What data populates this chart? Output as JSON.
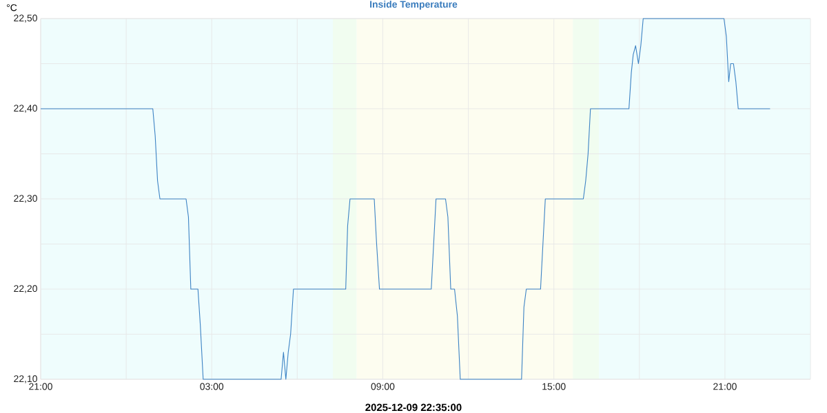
{
  "chart_data": {
    "type": "line",
    "title": "Inside Temperature",
    "xlabel": "2025-12-09 22:35:00",
    "ylabel": "°C",
    "x": [
      "2025-12-08T21:00",
      "2025-12-09T00:56",
      "2025-12-09T01:01",
      "2025-12-09T01:06",
      "2025-12-09T01:11",
      "2025-12-09T02:06",
      "2025-12-09T02:11",
      "2025-12-09T02:16",
      "2025-12-09T02:31",
      "2025-12-09T02:36",
      "2025-12-09T02:42",
      "2025-12-09T05:26",
      "2025-12-09T05:31",
      "2025-12-09T05:36",
      "2025-12-09T05:41",
      "2025-12-09T05:46",
      "2025-12-09T05:52",
      "2025-12-09T07:42",
      "2025-12-09T07:46",
      "2025-12-09T07:51",
      "2025-12-09T08:42",
      "2025-12-09T08:47",
      "2025-12-09T08:53",
      "2025-12-09T10:42",
      "2025-12-09T10:46",
      "2025-12-09T10:52",
      "2025-12-09T11:12",
      "2025-12-09T11:17",
      "2025-12-09T11:23",
      "2025-12-09T11:31",
      "2025-12-09T11:37",
      "2025-12-09T11:43",
      "2025-12-09T13:52",
      "2025-12-09T13:57",
      "2025-12-09T14:02",
      "2025-12-09T14:32",
      "2025-12-09T14:42",
      "2025-12-09T16:02",
      "2025-12-09T16:07",
      "2025-12-09T16:12",
      "2025-12-09T16:17",
      "2025-12-09T17:38",
      "2025-12-09T17:43",
      "2025-12-09T17:47",
      "2025-12-09T17:52",
      "2025-12-09T17:58",
      "2025-12-09T18:03",
      "2025-12-09T18:08",
      "2025-12-09T20:58",
      "2025-12-09T21:03",
      "2025-12-09T21:08",
      "2025-12-09T21:12",
      "2025-12-09T21:18",
      "2025-12-09T21:23",
      "2025-12-09T21:28",
      "2025-12-09T22:35"
    ],
    "series": [
      {
        "color": "#3b82c4",
        "values": [
          22.4,
          22.4,
          22.37,
          22.32,
          22.3,
          22.3,
          22.28,
          22.2,
          22.2,
          22.16,
          22.1,
          22.1,
          22.13,
          22.1,
          22.13,
          22.15,
          22.2,
          22.2,
          22.27,
          22.3,
          22.3,
          22.25,
          22.2,
          22.2,
          22.24,
          22.3,
          22.3,
          22.28,
          22.2,
          22.2,
          22.17,
          22.1,
          22.1,
          22.18,
          22.2,
          22.2,
          22.3,
          22.3,
          22.32,
          22.35,
          22.4,
          22.4,
          22.44,
          22.46,
          22.47,
          22.45,
          22.47,
          22.5,
          22.5,
          22.48,
          22.43,
          22.45,
          22.45,
          22.43,
          22.4,
          22.4
        ]
      }
    ],
    "xlim": [
      "2025-12-08T21:00",
      "2025-12-10T00:00"
    ],
    "xticks": [
      {
        "value": "2025-12-08T21:00",
        "label": "21:00"
      },
      {
        "value": "2025-12-09T00:00",
        "label": null
      },
      {
        "value": "2025-12-09T03:00",
        "label": "03:00"
      },
      {
        "value": "2025-12-09T06:00",
        "label": null
      },
      {
        "value": "2025-12-09T09:00",
        "label": "09:00"
      },
      {
        "value": "2025-12-09T12:00",
        "label": null
      },
      {
        "value": "2025-12-09T15:00",
        "label": "15:00"
      },
      {
        "value": "2025-12-09T18:00",
        "label": null
      },
      {
        "value": "2025-12-09T21:00",
        "label": "21:00"
      }
    ],
    "ylim": [
      22.1,
      22.5
    ],
    "yticks": [
      {
        "value": 22.1,
        "label": "22,10"
      },
      {
        "value": 22.15,
        "label": null
      },
      {
        "value": 22.2,
        "label": "22,20"
      },
      {
        "value": 22.25,
        "label": null
      },
      {
        "value": 22.3,
        "label": "22,30"
      },
      {
        "value": 22.35,
        "label": null
      },
      {
        "value": 22.4,
        "label": "22,40"
      },
      {
        "value": 22.45,
        "label": null
      },
      {
        "value": 22.5,
        "label": "22,50"
      }
    ],
    "bands": [
      {
        "axis": "x",
        "from": "2025-12-08T21:00",
        "to": "2025-12-09T07:15",
        "color": "#effdfd"
      },
      {
        "axis": "x",
        "from": "2025-12-09T07:15",
        "to": "2025-12-09T08:05",
        "color": "#f1fdf0"
      },
      {
        "axis": "x",
        "from": "2025-12-09T08:05",
        "to": "2025-12-09T15:40",
        "color": "#fdfdf0"
      },
      {
        "axis": "x",
        "from": "2025-12-09T15:40",
        "to": "2025-12-09T16:35",
        "color": "#f1fdf0"
      },
      {
        "axis": "x",
        "from": "2025-12-09T16:35",
        "to": "2025-12-10T00:00",
        "color": "#effdfd"
      }
    ],
    "grid": true,
    "marker": "none",
    "line_style": "solid"
  }
}
